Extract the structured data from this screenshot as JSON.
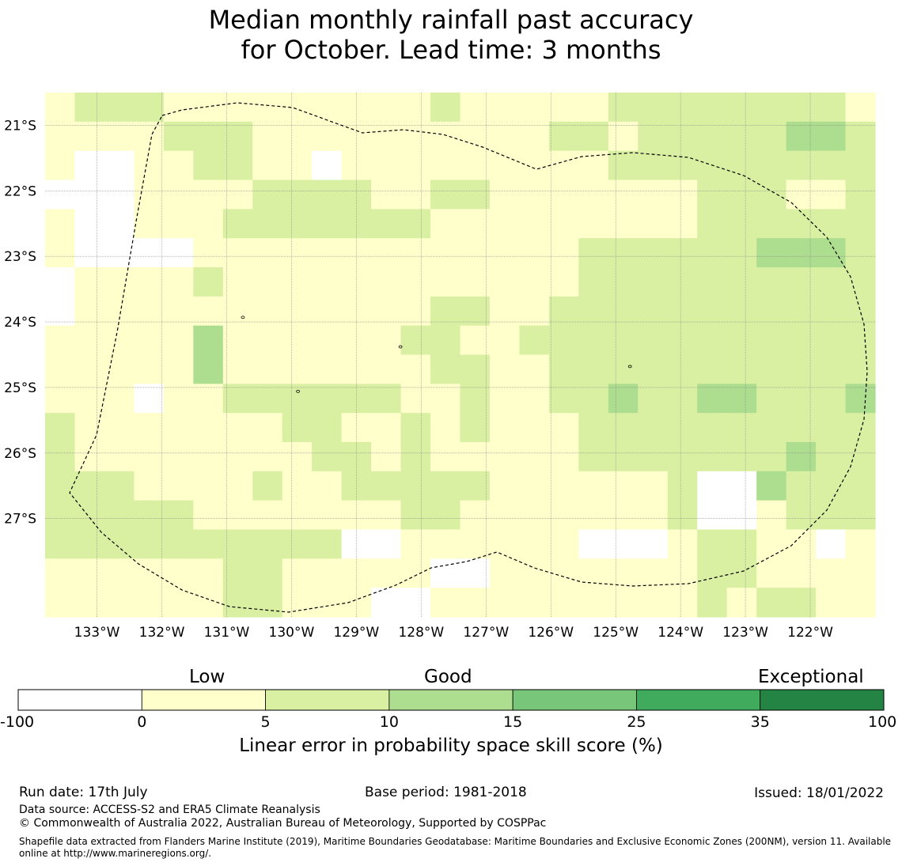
{
  "title": {
    "line1": "Median monthly rainfall past accuracy",
    "line2": "for October. Lead time: 3 months"
  },
  "map": {
    "lon_range": [
      -133.8,
      -121.0
    ],
    "lat_range": [
      -28.5,
      -20.5
    ],
    "x_ticks": [
      {
        "value": -133,
        "label": "133°W"
      },
      {
        "value": -132,
        "label": "132°W"
      },
      {
        "value": -131,
        "label": "131°W"
      },
      {
        "value": -130,
        "label": "130°W"
      },
      {
        "value": -129,
        "label": "129°W"
      },
      {
        "value": -128,
        "label": "128°W"
      },
      {
        "value": -127,
        "label": "127°W"
      },
      {
        "value": -126,
        "label": "126°W"
      },
      {
        "value": -125,
        "label": "125°W"
      },
      {
        "value": -124,
        "label": "124°W"
      },
      {
        "value": -123,
        "label": "123°W"
      },
      {
        "value": -122,
        "label": "122°W"
      }
    ],
    "y_ticks": [
      {
        "value": -21,
        "label": "21°S"
      },
      {
        "value": -22,
        "label": "22°S"
      },
      {
        "value": -23,
        "label": "23°S"
      },
      {
        "value": -24,
        "label": "24°S"
      },
      {
        "value": -25,
        "label": "25°S"
      },
      {
        "value": -26,
        "label": "26°S"
      },
      {
        "value": -27,
        "label": "27°S"
      }
    ],
    "grid_colors": [
      "#ffffff",
      "#ffffcc",
      "#d9f0a3",
      "#addd8e",
      "#78c679",
      "#41ab5d",
      "#238443"
    ],
    "grid": [
      "1222111111111211111222222221",
      "1111222111111111122122222332",
      "1001122110111111111222222222",
      "0001111222211221111111222112",
      "1001112222222111111111222222",
      "1000011111111111112222223332",
      "0111121111111111112222222222",
      "0111111111111221122222222222",
      "1111131111112211222222222222",
      "1111131111111221122222222222",
      "1110112222221121122322332223",
      "2111111122112121112222222222",
      "2111111112212111112222222322",
      "2221111211222221111112003222",
      "2222211111112211111112001222",
      "2222222222001111110001221101",
      "1111112211111001111111221111",
      "1111112211100111111111212211"
    ],
    "islands": [
      {
        "lon": -130.75,
        "lat": -23.93
      },
      {
        "lon": -128.32,
        "lat": -24.38
      },
      {
        "lon": -129.9,
        "lat": -25.06
      },
      {
        "lon": -124.78,
        "lat": -24.68
      }
    ]
  },
  "colorbar": {
    "categories": [
      "Low",
      "Good",
      "Exceptional"
    ],
    "bins": [
      {
        "from": -100,
        "to": 0,
        "color": "#ffffff"
      },
      {
        "from": 0,
        "to": 5,
        "color": "#ffffcc"
      },
      {
        "from": 5,
        "to": 10,
        "color": "#d9f0a3"
      },
      {
        "from": 10,
        "to": 15,
        "color": "#addd8e"
      },
      {
        "from": 15,
        "to": 25,
        "color": "#78c679"
      },
      {
        "from": 25,
        "to": 35,
        "color": "#41ab5d"
      },
      {
        "from": 35,
        "to": 100,
        "color": "#238443"
      }
    ],
    "ticks": [
      "-100",
      "0",
      "5",
      "10",
      "15",
      "25",
      "35",
      "100"
    ],
    "label": "Linear error in probability space skill score (%)"
  },
  "footer": {
    "run_date": "Run date: 17th July",
    "base_period": "Base period: 1981-2018",
    "issued": "Issued: 18/01/2022",
    "data_source": "Data source: ACCESS-S2 and ERA5 Climate Reanalysis",
    "copyright": "© Commonwealth of Australia 2022, Australian Bureau of Meteorology, Supported by COSPPac",
    "shapefile": "Shapefile data extracted from Flanders Marine Institute (2019), Maritime Boundaries Geodatabase: Maritime Boundaries and Exclusive Economic Zones (200NM), version 11. Available online at http://www.marineregions.org/."
  }
}
